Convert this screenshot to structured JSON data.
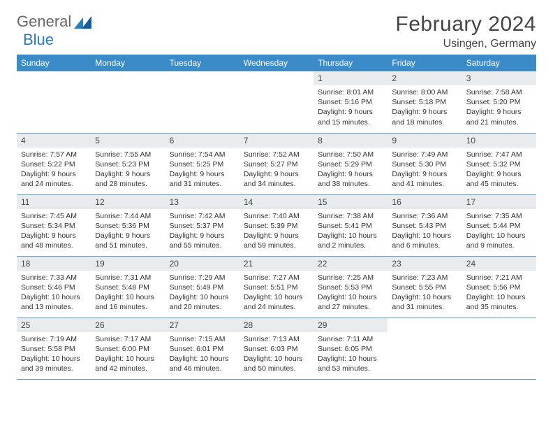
{
  "logo": {
    "text1": "General",
    "text2": "Blue"
  },
  "title": {
    "month": "February 2024",
    "location": "Usingen, Germany"
  },
  "days": [
    "Sunday",
    "Monday",
    "Tuesday",
    "Wednesday",
    "Thursday",
    "Friday",
    "Saturday"
  ],
  "colors": {
    "headerBg": "#3b8bc9",
    "dayNumBg": "#e9ecef",
    "rule": "#7a98b5",
    "logoBlue": "#2b7bbf",
    "text": "#333"
  },
  "weeks": [
    [
      null,
      null,
      null,
      null,
      {
        "n": "1",
        "sr": "8:01 AM",
        "ss": "5:16 PM",
        "dl": "9 hours and 15 minutes."
      },
      {
        "n": "2",
        "sr": "8:00 AM",
        "ss": "5:18 PM",
        "dl": "9 hours and 18 minutes."
      },
      {
        "n": "3",
        "sr": "7:58 AM",
        "ss": "5:20 PM",
        "dl": "9 hours and 21 minutes."
      }
    ],
    [
      {
        "n": "4",
        "sr": "7:57 AM",
        "ss": "5:22 PM",
        "dl": "9 hours and 24 minutes."
      },
      {
        "n": "5",
        "sr": "7:55 AM",
        "ss": "5:23 PM",
        "dl": "9 hours and 28 minutes."
      },
      {
        "n": "6",
        "sr": "7:54 AM",
        "ss": "5:25 PM",
        "dl": "9 hours and 31 minutes."
      },
      {
        "n": "7",
        "sr": "7:52 AM",
        "ss": "5:27 PM",
        "dl": "9 hours and 34 minutes."
      },
      {
        "n": "8",
        "sr": "7:50 AM",
        "ss": "5:29 PM",
        "dl": "9 hours and 38 minutes."
      },
      {
        "n": "9",
        "sr": "7:49 AM",
        "ss": "5:30 PM",
        "dl": "9 hours and 41 minutes."
      },
      {
        "n": "10",
        "sr": "7:47 AM",
        "ss": "5:32 PM",
        "dl": "9 hours and 45 minutes."
      }
    ],
    [
      {
        "n": "11",
        "sr": "7:45 AM",
        "ss": "5:34 PM",
        "dl": "9 hours and 48 minutes."
      },
      {
        "n": "12",
        "sr": "7:44 AM",
        "ss": "5:36 PM",
        "dl": "9 hours and 51 minutes."
      },
      {
        "n": "13",
        "sr": "7:42 AM",
        "ss": "5:37 PM",
        "dl": "9 hours and 55 minutes."
      },
      {
        "n": "14",
        "sr": "7:40 AM",
        "ss": "5:39 PM",
        "dl": "9 hours and 59 minutes."
      },
      {
        "n": "15",
        "sr": "7:38 AM",
        "ss": "5:41 PM",
        "dl": "10 hours and 2 minutes."
      },
      {
        "n": "16",
        "sr": "7:36 AM",
        "ss": "5:43 PM",
        "dl": "10 hours and 6 minutes."
      },
      {
        "n": "17",
        "sr": "7:35 AM",
        "ss": "5:44 PM",
        "dl": "10 hours and 9 minutes."
      }
    ],
    [
      {
        "n": "18",
        "sr": "7:33 AM",
        "ss": "5:46 PM",
        "dl": "10 hours and 13 minutes."
      },
      {
        "n": "19",
        "sr": "7:31 AM",
        "ss": "5:48 PM",
        "dl": "10 hours and 16 minutes."
      },
      {
        "n": "20",
        "sr": "7:29 AM",
        "ss": "5:49 PM",
        "dl": "10 hours and 20 minutes."
      },
      {
        "n": "21",
        "sr": "7:27 AM",
        "ss": "5:51 PM",
        "dl": "10 hours and 24 minutes."
      },
      {
        "n": "22",
        "sr": "7:25 AM",
        "ss": "5:53 PM",
        "dl": "10 hours and 27 minutes."
      },
      {
        "n": "23",
        "sr": "7:23 AM",
        "ss": "5:55 PM",
        "dl": "10 hours and 31 minutes."
      },
      {
        "n": "24",
        "sr": "7:21 AM",
        "ss": "5:56 PM",
        "dl": "10 hours and 35 minutes."
      }
    ],
    [
      {
        "n": "25",
        "sr": "7:19 AM",
        "ss": "5:58 PM",
        "dl": "10 hours and 39 minutes."
      },
      {
        "n": "26",
        "sr": "7:17 AM",
        "ss": "6:00 PM",
        "dl": "10 hours and 42 minutes."
      },
      {
        "n": "27",
        "sr": "7:15 AM",
        "ss": "6:01 PM",
        "dl": "10 hours and 46 minutes."
      },
      {
        "n": "28",
        "sr": "7:13 AM",
        "ss": "6:03 PM",
        "dl": "10 hours and 50 minutes."
      },
      {
        "n": "29",
        "sr": "7:11 AM",
        "ss": "6:05 PM",
        "dl": "10 hours and 53 minutes."
      },
      null,
      null
    ]
  ],
  "labels": {
    "sunrise": "Sunrise:",
    "sunset": "Sunset:",
    "daylight": "Daylight:"
  }
}
